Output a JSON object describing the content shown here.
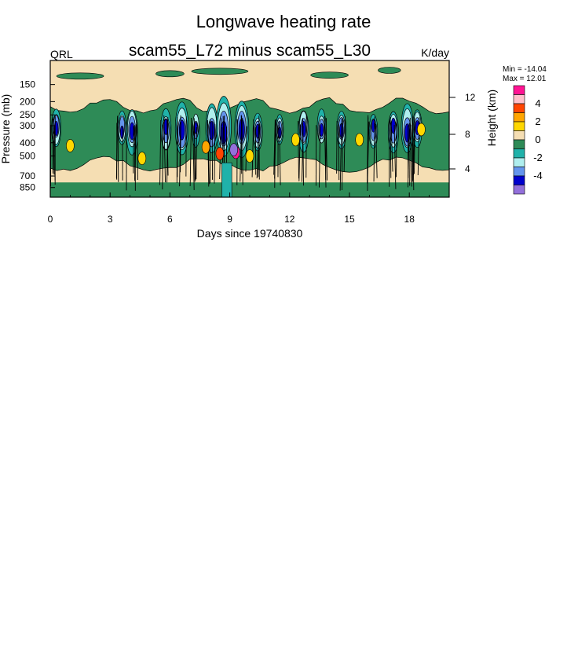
{
  "chart_data": {
    "type": "heatmap",
    "title": "Longwave heating rate",
    "subtitle": "scam55_L72 minus scam55_L30",
    "left_label": "QRL",
    "units": "K/day",
    "xlabel": "Days since 19740830",
    "ylabel": "Pressure (mb)",
    "ylabel_right": "Height (km)",
    "x_ticks": [
      "0",
      "3",
      "6",
      "9",
      "12",
      "15",
      "18"
    ],
    "x_range": [
      0,
      20
    ],
    "y_ticks": [
      "150",
      "200",
      "250",
      "300",
      "400",
      "500",
      "700",
      "850"
    ],
    "y_range_mb": [
      100,
      1000
    ],
    "y_scale": "log-pressure",
    "y_right_ticks": [
      "12",
      "8",
      "4"
    ],
    "stats": {
      "min": "Min = -14.04",
      "max": "Max =  12.01"
    },
    "legend": {
      "labels": [
        "4",
        "2",
        "0",
        "-2",
        "-4"
      ],
      "colors": [
        "#ff1493",
        "#ffc0cb",
        "#ff4500",
        "#ffa500",
        "#ffd700",
        "#f5deb3",
        "#2e8b57",
        "#20b2aa",
        "#afeeee",
        "#6495ed",
        "#0000cd",
        "#9370db"
      ]
    },
    "field_colors": {
      "zero": "#f5deb3",
      "slightly_negative": "#2e8b57",
      "negative": "#20b2aa",
      "more_negative": "#afeeee",
      "strong_negative": "#6495ed",
      "very_negative": "#0000cd",
      "positive": "#ffd700",
      "more_positive": "#ffa500",
      "strong_positive": "#ff4500",
      "very_positive": "#ff1493",
      "extreme": "#9370db"
    }
  }
}
